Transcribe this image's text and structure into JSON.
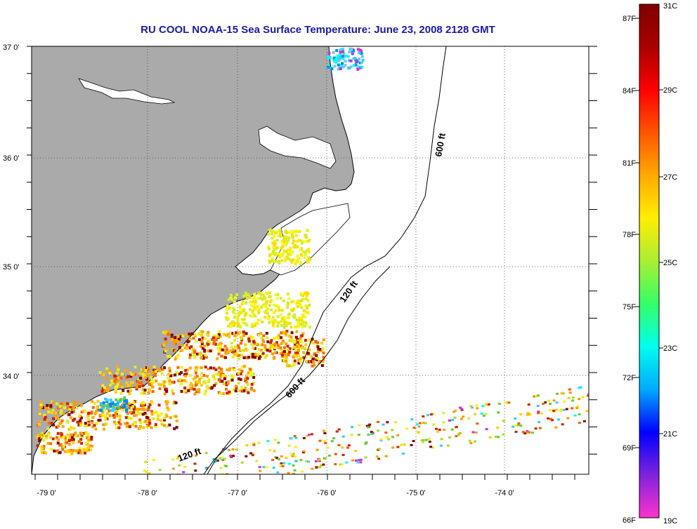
{
  "title": "RU COOL  NOAA-15  Sea Surface Temperature:  June 23, 2008 2128 GMT",
  "lat_labels": [
    "37 0'",
    "36 0'",
    "35 0'",
    "34 0'"
  ],
  "lon_labels": [
    "-79 0'",
    "-78 0'",
    "-77 0'",
    "-76 0'",
    "-75 0'",
    "-74 0'"
  ],
  "contours": {
    "c600": "600 ft",
    "c120": "120 ft"
  },
  "colorbar": {
    "fahrenheit": [
      "87F",
      "84F",
      "81F",
      "78F",
      "75F",
      "72F",
      "69F",
      "66F"
    ],
    "celsius": [
      "31C",
      "29C",
      "27C",
      "25C",
      "23C",
      "21C",
      "19C"
    ],
    "colors": [
      "#ff33cc",
      "#7f22dd",
      "#0000ff",
      "#00aaff",
      "#00ffee",
      "#33ff66",
      "#aaee33",
      "#ffee00",
      "#ffaa00",
      "#ff5500",
      "#ff0000",
      "#aa0000",
      "#7f0000"
    ]
  },
  "colors": {
    "land": "#aaaaaa",
    "coastline": "#000000",
    "title": "#1a1aa8",
    "grid": "#444444"
  }
}
